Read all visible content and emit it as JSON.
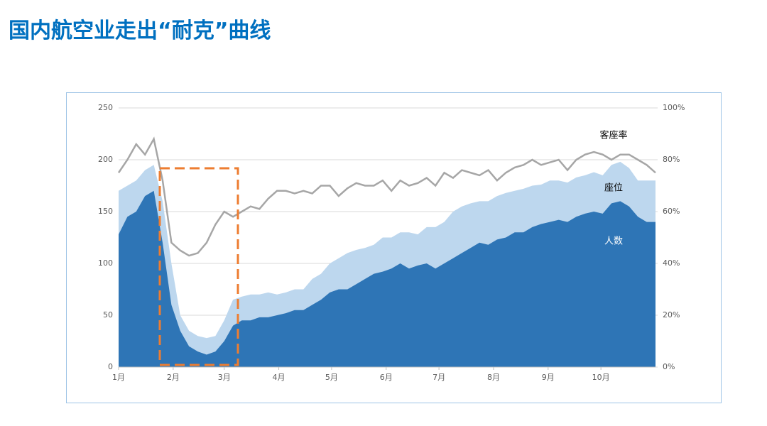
{
  "title": "国内航空业走出“耐克”曲线",
  "chart_data": {
    "type": "area-line",
    "x": [
      0,
      5,
      10,
      15,
      20,
      25,
      30,
      35,
      40,
      45,
      50,
      55,
      60,
      65,
      70,
      75,
      80,
      85,
      90,
      95,
      100,
      105,
      110,
      115,
      120,
      125,
      130,
      135,
      140,
      145,
      150,
      155,
      160,
      165,
      170,
      175,
      180,
      185,
      190,
      195,
      200,
      205,
      210,
      215,
      220,
      225,
      230,
      235,
      240,
      245,
      250,
      255,
      260,
      265,
      270,
      275,
      280,
      285,
      290,
      295,
      300,
      305
    ],
    "xlim": [
      0,
      305
    ],
    "xticks": [
      {
        "value": 0,
        "label": "1月"
      },
      {
        "value": 31,
        "label": "2月"
      },
      {
        "value": 60,
        "label": "3月"
      },
      {
        "value": 91,
        "label": "4月"
      },
      {
        "value": 121,
        "label": "5月"
      },
      {
        "value": 152,
        "label": "6月"
      },
      {
        "value": 182,
        "label": "7月"
      },
      {
        "value": 213,
        "label": "8月"
      },
      {
        "value": 244,
        "label": "9月"
      },
      {
        "value": 274,
        "label": "10月"
      }
    ],
    "ylim": [
      0,
      250
    ],
    "yticks": [
      0,
      50,
      100,
      150,
      200,
      250
    ],
    "y2lim": [
      0,
      100
    ],
    "y2ticks": [
      {
        "value": 0,
        "label": "0%"
      },
      {
        "value": 20,
        "label": "20%"
      },
      {
        "value": 40,
        "label": "40%"
      },
      {
        "value": 60,
        "label": "60%"
      },
      {
        "value": 80,
        "label": "80%"
      },
      {
        "value": 100,
        "label": "100%"
      }
    ],
    "grid": true,
    "series": [
      {
        "name": "座位",
        "color": "#bdd7ee",
        "kind": "area",
        "values": [
          170,
          175,
          180,
          190,
          195,
          160,
          100,
          50,
          35,
          30,
          28,
          30,
          45,
          65,
          68,
          70,
          70,
          72,
          70,
          72,
          75,
          75,
          85,
          90,
          100,
          105,
          110,
          113,
          115,
          118,
          125,
          125,
          130,
          130,
          128,
          135,
          135,
          140,
          150,
          155,
          158,
          160,
          160,
          165,
          168,
          170,
          172,
          175,
          176,
          180,
          180,
          178,
          183,
          185,
          188,
          185,
          195,
          198,
          192,
          180,
          180,
          180
        ]
      },
      {
        "name": "人数",
        "color": "#2e75b6",
        "kind": "area",
        "values": [
          128,
          145,
          150,
          165,
          170,
          120,
          60,
          35,
          20,
          15,
          12,
          15,
          25,
          40,
          45,
          45,
          48,
          48,
          50,
          52,
          55,
          55,
          60,
          65,
          72,
          75,
          75,
          80,
          85,
          90,
          92,
          95,
          100,
          95,
          98,
          100,
          95,
          100,
          105,
          110,
          115,
          120,
          118,
          123,
          125,
          130,
          130,
          135,
          138,
          140,
          142,
          140,
          145,
          148,
          150,
          148,
          158,
          160,
          155,
          145,
          140,
          140
        ]
      },
      {
        "name": "客座率",
        "color": "#a6a6a6",
        "kind": "line",
        "axis": "y2",
        "values": [
          75,
          80,
          86,
          82,
          88,
          72,
          48,
          45,
          43,
          44,
          48,
          55,
          60,
          58,
          60,
          62,
          61,
          65,
          68,
          68,
          67,
          68,
          67,
          70,
          70,
          66,
          69,
          71,
          70,
          70,
          72,
          68,
          72,
          70,
          71,
          73,
          70,
          75,
          73,
          76,
          75,
          74,
          76,
          72,
          75,
          77,
          78,
          80,
          78,
          79,
          80,
          76,
          80,
          82,
          83,
          82,
          80,
          82,
          82,
          80,
          78,
          75
        ]
      }
    ]
  }
}
